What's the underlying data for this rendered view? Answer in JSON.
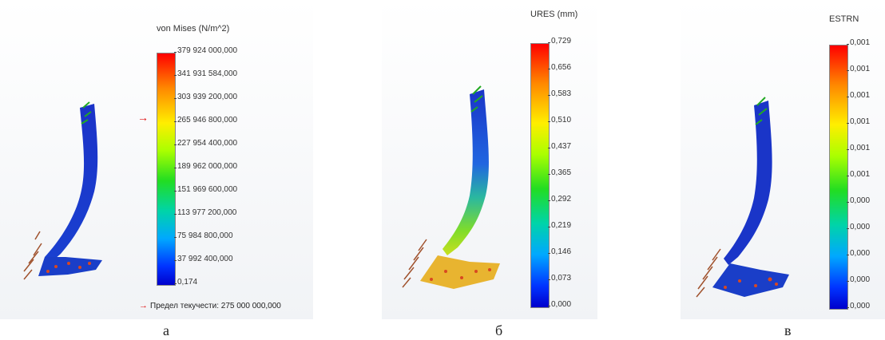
{
  "panels": [
    {
      "caption": "а",
      "legend_title": "von Mises (N/m^2)",
      "ticks": [
        "379 924 000,000",
        "341 931 584,000",
        "303 939 200,000",
        "265 946 800,000",
        "227 954 400,000",
        "189 962 000,000",
        "151 969 600,000",
        "113 977 200,000",
        "75 984 800,000",
        "37 992 400,000",
        "0,174"
      ],
      "yield_marker_value": 275000000,
      "yield_label": "Предел текучести: 275 000 000,000"
    },
    {
      "caption": "б",
      "legend_title": "URES (mm)",
      "ticks": [
        "0,729",
        "0,656",
        "0,583",
        "0,510",
        "0,437",
        "0,365",
        "0,292",
        "0,219",
        "0,146",
        "0,073",
        "0,000"
      ]
    },
    {
      "caption": "в",
      "legend_title": "ESTRN",
      "ticks": [
        "0,001",
        "0,001",
        "0,001",
        "0,001",
        "0,001",
        "0,001",
        "0,000",
        "0,000",
        "0,000",
        "0,000",
        "0,000"
      ]
    }
  ],
  "colors": {
    "colormap_top": "#ff0000",
    "colormap_bottom": "#0000cc",
    "arrow_marker": "#e01010",
    "load_arrows": "#a0522d",
    "fixture_arrows": "#22aa22"
  }
}
